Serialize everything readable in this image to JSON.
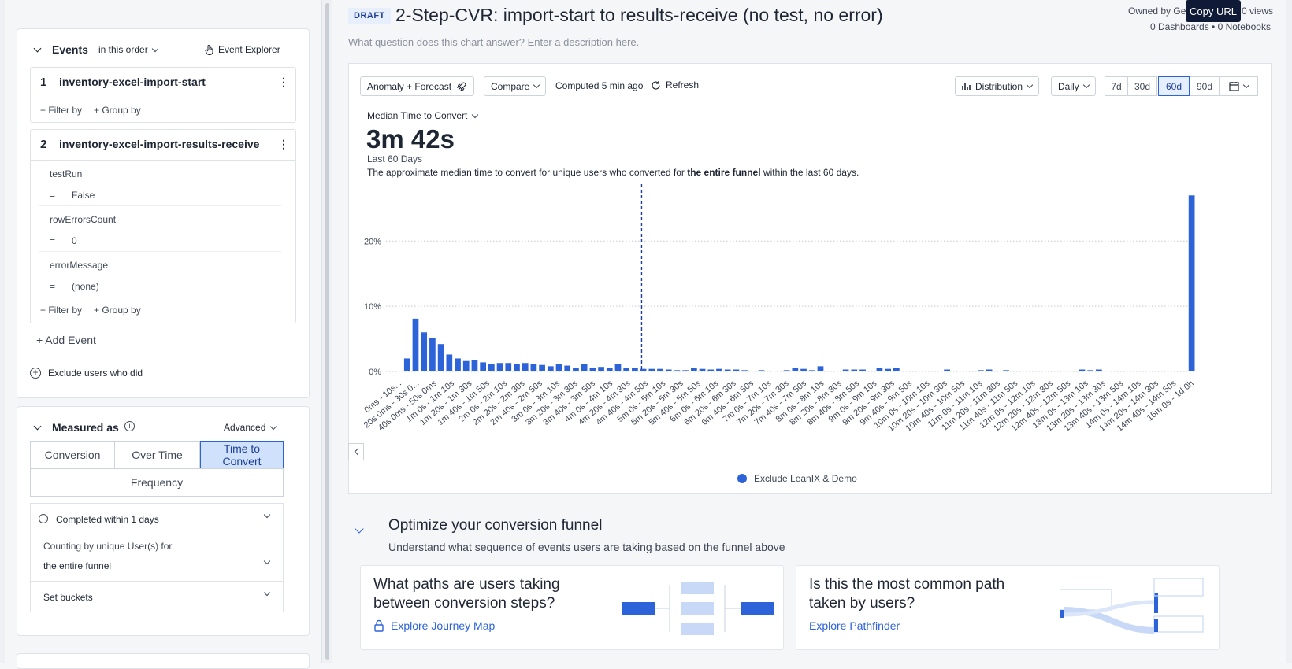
{
  "left": {
    "events_section": {
      "title": "Events",
      "order": "in this order",
      "explorer": "Event Explorer",
      "events": [
        {
          "num": "1",
          "name": "inventory-excel-import-start"
        },
        {
          "num": "2",
          "name": "inventory-excel-import-results-receive"
        }
      ],
      "filter_by": "+ Filter by",
      "group_by": "+ Group by",
      "filters": [
        {
          "prop": "testRun",
          "op": "=",
          "value": "False"
        },
        {
          "prop": "rowErrorsCount",
          "op": "=",
          "value": "0"
        },
        {
          "prop": "errorMessage",
          "op": "=",
          "value": "(none)"
        }
      ],
      "add_event": "+ Add Event",
      "exclude": "Exclude users who did"
    },
    "measured_section": {
      "title": "Measured as",
      "advanced": "Advanced",
      "tabs": [
        "Conversion",
        "Over Time",
        "Time to Convert",
        "Frequency"
      ],
      "completed": "Completed within 1 days",
      "counting_label": "Counting by unique User(s) for",
      "counting_value": "the entire funnel",
      "set_buckets": "Set buckets"
    }
  },
  "header": {
    "badge": "DRAFT",
    "title": "2-Step-CVR: import-start to results-receive (no test, no error)",
    "description": "What question does this chart answer? Enter a description here.",
    "owned_by": "Owned by Ge",
    "views": "0 views",
    "dashboards": "0 Dashboards • 0 Notebooks",
    "tooltip": "Copy URL"
  },
  "toolbar": {
    "anomaly": "Anomaly + Forecast",
    "compare": "Compare",
    "computed": "Computed 5 min ago",
    "refresh": "Refresh",
    "distribution": "Distribution",
    "daily": "Daily",
    "ranges": [
      "7d",
      "30d",
      "60d",
      "90d"
    ],
    "active_range": "60d"
  },
  "metric": {
    "selector": "Median Time to Convert",
    "value": "3m 42s",
    "period": "Last 60 Days",
    "desc_pre": "The approximate median time to convert for unique users who converted for ",
    "desc_bold": "the entire funnel",
    "desc_post": " within the last 60 days."
  },
  "chart_data": {
    "type": "bar",
    "title": "",
    "xlabel": "",
    "ylabel": "",
    "ylim": [
      0,
      28
    ],
    "yticks": [
      "0%",
      "10%",
      "20%"
    ],
    "legend": "Exclude LeanIX & Demo",
    "median_marker_index": 30,
    "color": "#2d63d8",
    "categories_labels": [
      "0ms - 10s...",
      "20s 0ms - 30s 0...",
      "40s 0ms - 50s 0ms",
      "1m 0s - 1m 10s",
      "1m 20s - 1m 30s",
      "1m 40s - 1m 50s",
      "2m 0s - 2m 10s",
      "2m 20s - 2m 30s",
      "2m 40s - 2m 50s",
      "3m 0s - 3m 10s",
      "3m 20s - 3m 30s",
      "3m 40s - 3m 50s",
      "4m 0s - 4m 10s",
      "4m 20s - 4m 30s",
      "4m 40s - 4m 50s",
      "5m 0s - 5m 10s",
      "5m 20s - 5m 30s",
      "5m 40s - 5m 50s",
      "6m 0s - 6m 10s",
      "6m 20s - 6m 30s",
      "6m 40s - 6m 50s",
      "7m 0s - 7m 10s",
      "7m 20s - 7m 30s",
      "7m 40s - 7m 50s",
      "8m 0s - 8m 10s",
      "8m 20s - 8m 30s",
      "8m 40s - 8m 50s",
      "9m 0s - 9m 10s",
      "9m 20s - 9m 30s",
      "9m 40s - 9m 50s",
      "10m 0s - 10m 10s",
      "10m 20s - 10m 30s",
      "10m 40s - 10m 50s",
      "11m 0s - 11m 10s",
      "11m 20s - 11m 30s",
      "11m 40s - 11m 50s",
      "12m 0s - 12m 10s",
      "12m 20s - 12m 30s",
      "12m 40s - 12m 50s",
      "13m 0s - 13m 10s",
      "13m 20s - 13m 30s",
      "13m 40s - 13m 50s",
      "14m 0s - 14m 10s",
      "14m 20s - 14m 30s",
      "14m 40s - 14m 50s",
      "15m 0s - 1d 0h"
    ],
    "values": [
      0,
      0,
      2.0,
      8.1,
      6.0,
      5.1,
      4.2,
      2.6,
      2.0,
      1.6,
      1.7,
      1.4,
      1.2,
      1.3,
      1.3,
      1.2,
      1.3,
      1.1,
      1.0,
      0.8,
      1.1,
      0.9,
      0.6,
      1.1,
      0.6,
      0.7,
      0.6,
      1.2,
      0.6,
      0.5,
      0.4,
      0.4,
      0.4,
      0.3,
      0.2,
      0.2,
      0.5,
      0.4,
      0.3,
      0.4,
      0.3,
      0.3,
      0.2,
      0,
      0.2,
      0,
      0,
      0.2,
      0.5,
      0.4,
      0.2,
      0.8,
      0,
      0,
      0.3,
      0.3,
      0.3,
      0,
      0.5,
      0.4,
      0.6,
      0,
      0.1,
      0,
      0.1,
      0,
      0.3,
      0,
      0.1,
      0,
      0.2,
      0.3,
      0,
      0.2,
      0,
      0,
      0,
      0,
      0.1,
      0.1,
      0,
      0,
      0.3,
      0.2,
      0.3,
      0.1,
      0,
      0,
      0,
      0,
      0,
      0,
      0.1,
      0,
      0,
      27.0
    ]
  },
  "optimize": {
    "title": "Optimize your conversion funnel",
    "subtitle": "Understand what sequence of events users are taking based on the funnel above",
    "card1_title": "What paths are users taking between conversion steps?",
    "card1_link": "Explore Journey Map",
    "card2_title": "Is this the most common path taken by users?",
    "card2_link": "Explore Pathfinder"
  }
}
